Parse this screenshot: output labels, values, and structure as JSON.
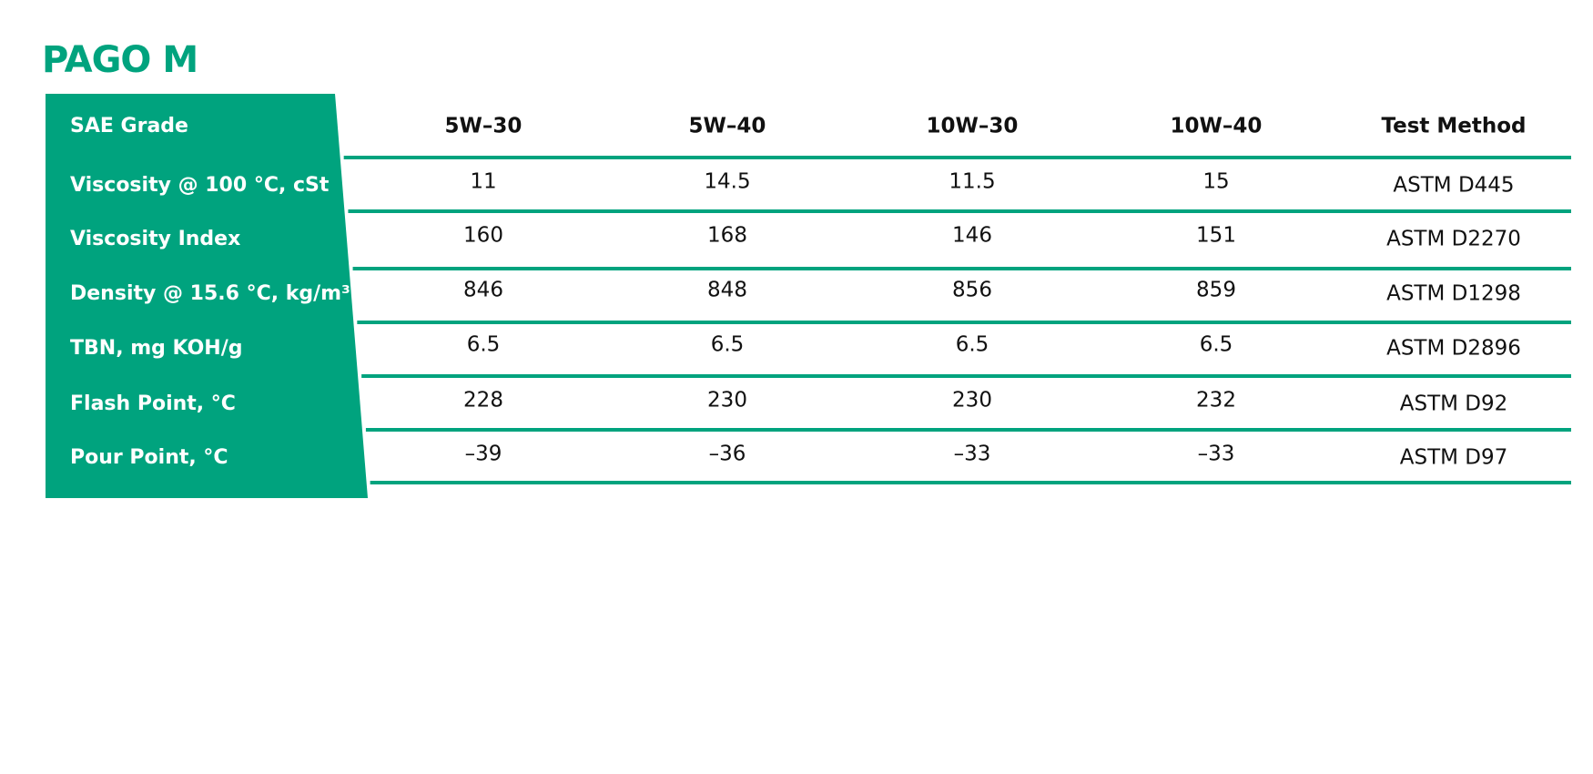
{
  "header": {
    "title": "PAGO M"
  },
  "table": {
    "columns": [
      "SAE Grade",
      "5W–30",
      "5W–40",
      "10W–30",
      "10W–40",
      "Test Method"
    ],
    "rows": [
      [
        "Viscosity @ 100 °C, cSt",
        "11",
        "14.5",
        "11.5",
        "15",
        "ASTM D445"
      ],
      [
        "Viscosity Index",
        "160",
        "168",
        "146",
        "151",
        "ASTM D2270"
      ],
      [
        "Density @ 15.6 °C, kg/m³",
        "846",
        "848",
        "856",
        "859",
        "ASTM D1298"
      ],
      [
        "TBN, mg KOH/g",
        "6.5",
        "6.5",
        "6.5",
        "6.5",
        "ASTM D2896"
      ],
      [
        "Flash Point, °C",
        "228",
        "230",
        "230",
        "232",
        "ASTM D92"
      ],
      [
        "Pour Point, °C",
        "–39",
        "–36",
        "–33",
        "–33",
        "ASTM D97"
      ]
    ]
  }
}
